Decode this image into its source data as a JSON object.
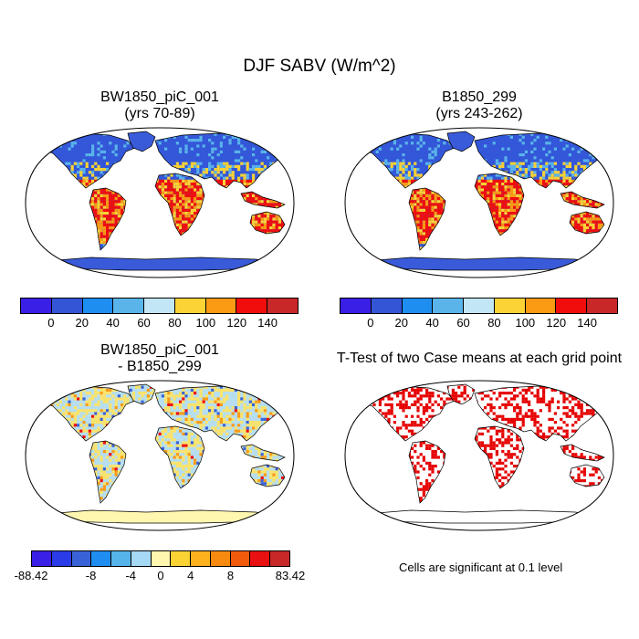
{
  "title": "DJF SABV (W/m^2)",
  "panels": {
    "top_left": {
      "line1": "BW1850_piC_001",
      "line2": "(yrs 70-89)"
    },
    "top_right": {
      "line1": "B1850_299",
      "line2": "(yrs 243-262)"
    },
    "bottom_left": {
      "line1": "BW1850_piC_001",
      "line2": "- B1850_299"
    },
    "bottom_right": {
      "line1": "T-Test of two Case means at each grid point"
    }
  },
  "colorbar_abs": {
    "colors": [
      "#3a1fe6",
      "#3355d6",
      "#1e8ef0",
      "#5ab4ea",
      "#c2e6f5",
      "#fbd335",
      "#fb9a13",
      "#f20d0d",
      "#c82828"
    ],
    "labels": [
      "0",
      "20",
      "40",
      "60",
      "80",
      "100",
      "120",
      "140"
    ]
  },
  "colorbar_diff": {
    "colors": [
      "#3a1fe6",
      "#2a3ce8",
      "#3a62d8",
      "#1f8ef0",
      "#56b4ea",
      "#a6daf4",
      "#fff6b0",
      "#fbd335",
      "#fbb21e",
      "#f88a10",
      "#f25a0c",
      "#e81010",
      "#c82828"
    ],
    "labels": [
      "-88.42",
      "-8",
      "-4",
      "0",
      "4",
      "8",
      "83.42"
    ]
  },
  "significance_note": "Cells are significant at 0.1 level",
  "map_colors": {
    "ocean": "#ffffff",
    "cold": "#3357d8",
    "ice": "#3a5bd9",
    "mid": "#5ab4ea",
    "warm": "#fbd335",
    "hot": "#f20d0d",
    "diff_base": "#b6def0",
    "diff_pos": "#fbe36a",
    "diff_ice": "#fff6b0",
    "sig": "#e60000"
  }
}
